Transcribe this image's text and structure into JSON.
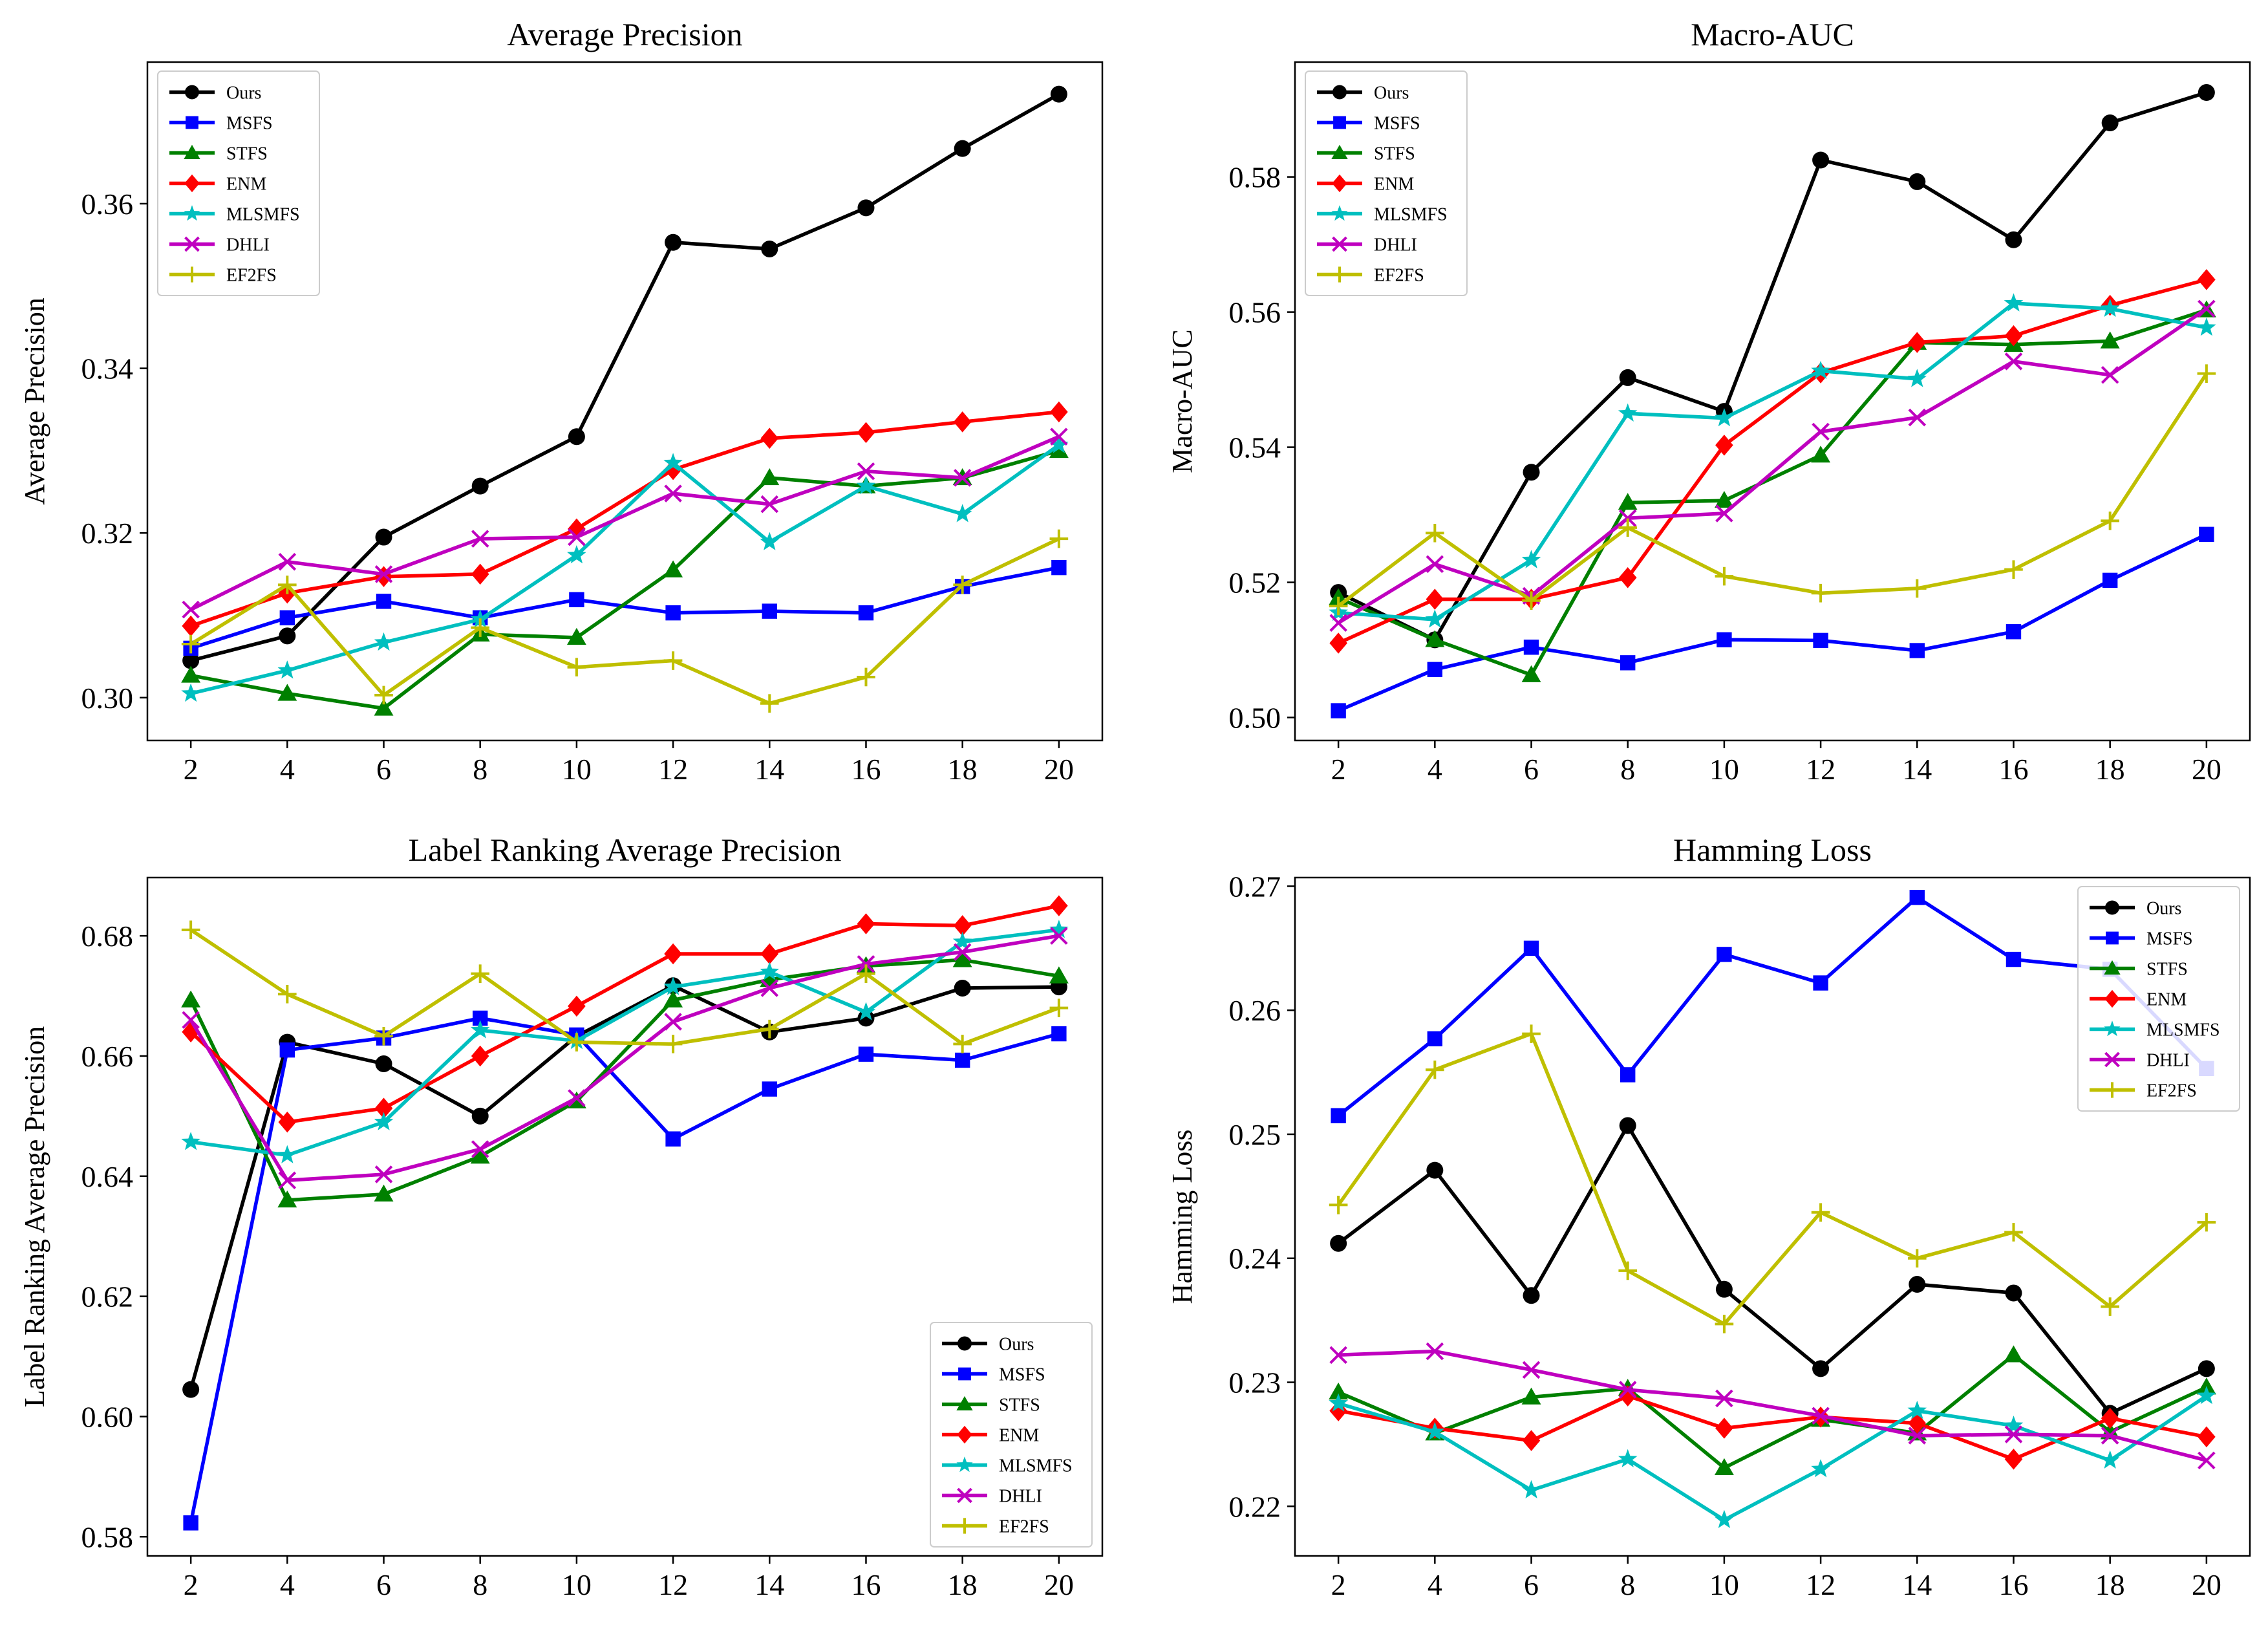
{
  "colors": {
    "Ours": "#000000",
    "MSFS": "#0000ff",
    "STFS": "#008000",
    "ENM": "#ff0000",
    "MLSMFS": "#00bfbf",
    "DHLI": "#bf00bf",
    "EF2FS": "#bfbf00"
  },
  "markers": {
    "Ours": "circle",
    "MSFS": "square",
    "STFS": "triangle",
    "ENM": "diamond",
    "MLSMFS": "star",
    "DHLI": "x",
    "EF2FS": "plus"
  },
  "chart_data": [
    {
      "type": "line",
      "title": "Average Precision",
      "xlabel": "",
      "ylabel": "Average Precision",
      "x": [
        2,
        4,
        6,
        8,
        10,
        12,
        14,
        16,
        18,
        20
      ],
      "xlim": [
        1.1,
        20.9
      ],
      "ylim": [
        0.2948,
        0.3772
      ],
      "yticks": [
        0.3,
        0.32,
        0.34,
        0.36
      ],
      "ytick_labels": [
        "0.30",
        "0.32",
        "0.34",
        "0.36"
      ],
      "legend": "top-left",
      "series": [
        {
          "name": "Ours",
          "values": [
            0.3045,
            0.3075,
            0.3195,
            0.3257,
            0.3317,
            0.3553,
            0.3545,
            0.3595,
            0.3667,
            0.3733
          ]
        },
        {
          "name": "MSFS",
          "values": [
            0.306,
            0.3097,
            0.3117,
            0.3097,
            0.3119,
            0.3103,
            0.3105,
            0.3103,
            0.3135,
            0.3158
          ]
        },
        {
          "name": "STFS",
          "values": [
            0.3027,
            0.3005,
            0.2987,
            0.3077,
            0.3073,
            0.3155,
            0.3267,
            0.3257,
            0.3267,
            0.33
          ]
        },
        {
          "name": "ENM",
          "values": [
            0.3087,
            0.3127,
            0.3147,
            0.315,
            0.3205,
            0.3277,
            0.3315,
            0.3322,
            0.3335,
            0.3347
          ]
        },
        {
          "name": "MLSMFS",
          "values": [
            0.3005,
            0.3033,
            0.3067,
            0.3095,
            0.3173,
            0.3285,
            0.3189,
            0.3257,
            0.3223,
            0.3307
          ]
        },
        {
          "name": "DHLI",
          "values": [
            0.3107,
            0.3165,
            0.315,
            0.3193,
            0.3195,
            0.3248,
            0.3235,
            0.3275,
            0.3267,
            0.3317
          ]
        },
        {
          "name": "EF2FS",
          "values": [
            0.3065,
            0.3137,
            0.3003,
            0.3085,
            0.3037,
            0.3045,
            0.2993,
            0.3025,
            0.3137,
            0.3193
          ]
        }
      ]
    },
    {
      "type": "line",
      "title": "Macro-AUC",
      "xlabel": "",
      "ylabel": "Macro-AUC",
      "x": [
        2,
        4,
        6,
        8,
        10,
        12,
        14,
        16,
        18,
        20
      ],
      "xlim": [
        1.1,
        20.9
      ],
      "ylim": [
        0.4966,
        0.597
      ],
      "yticks": [
        0.5,
        0.52,
        0.54,
        0.56,
        0.58
      ],
      "ytick_labels": [
        "0.50",
        "0.52",
        "0.54",
        "0.56",
        "0.58"
      ],
      "legend": "top-left",
      "series": [
        {
          "name": "Ours",
          "values": [
            0.5185,
            0.5115,
            0.5363,
            0.5503,
            0.5453,
            0.5825,
            0.5793,
            0.5707,
            0.588,
            0.5925
          ]
        },
        {
          "name": "MSFS",
          "values": [
            0.501,
            0.5071,
            0.5104,
            0.5081,
            0.5115,
            0.5114,
            0.5099,
            0.5127,
            0.5203,
            0.5271
          ]
        },
        {
          "name": "STFS",
          "values": [
            0.5177,
            0.5115,
            0.5063,
            0.5318,
            0.5321,
            0.5388,
            0.5555,
            0.5552,
            0.5557,
            0.5603
          ]
        },
        {
          "name": "ENM",
          "values": [
            0.511,
            0.5175,
            0.5175,
            0.5207,
            0.5403,
            0.551,
            0.5555,
            0.5565,
            0.561,
            0.5648
          ]
        },
        {
          "name": "MLSMFS",
          "values": [
            0.5155,
            0.5145,
            0.5233,
            0.545,
            0.5443,
            0.5513,
            0.5501,
            0.5613,
            0.5605,
            0.5577
          ]
        },
        {
          "name": "DHLI",
          "values": [
            0.514,
            0.5227,
            0.518,
            0.5295,
            0.5302,
            0.5423,
            0.5444,
            0.5527,
            0.5507,
            0.5605
          ]
        },
        {
          "name": "EF2FS",
          "values": [
            0.5165,
            0.5273,
            0.5173,
            0.5281,
            0.5209,
            0.5184,
            0.5191,
            0.5219,
            0.5291,
            0.5509
          ]
        }
      ]
    },
    {
      "type": "line",
      "title": "Label Ranking Average Precision",
      "xlabel": "",
      "ylabel": "Label Ranking Average Precision",
      "x": [
        2,
        4,
        6,
        8,
        10,
        12,
        14,
        16,
        18,
        20
      ],
      "xlim": [
        1.1,
        20.9
      ],
      "ylim": [
        0.5768,
        0.6897
      ],
      "yticks": [
        0.58,
        0.6,
        0.62,
        0.64,
        0.66,
        0.68
      ],
      "ytick_labels": [
        "0.58",
        "0.60",
        "0.62",
        "0.64",
        "0.66",
        "0.68"
      ],
      "legend": "bottom-right",
      "series": [
        {
          "name": "Ours",
          "values": [
            0.6045,
            0.6623,
            0.6587,
            0.65,
            0.6633,
            0.6717,
            0.664,
            0.6663,
            0.6713,
            0.6715
          ]
        },
        {
          "name": "MSFS",
          "values": [
            0.5823,
            0.661,
            0.663,
            0.6663,
            0.6635,
            0.6462,
            0.6545,
            0.6603,
            0.6593,
            0.6637
          ]
        },
        {
          "name": "STFS",
          "values": [
            0.6693,
            0.636,
            0.637,
            0.6433,
            0.6525,
            0.6693,
            0.6727,
            0.675,
            0.676,
            0.6733
          ]
        },
        {
          "name": "ENM",
          "values": [
            0.664,
            0.649,
            0.6513,
            0.66,
            0.6683,
            0.677,
            0.677,
            0.682,
            0.6817,
            0.685
          ]
        },
        {
          "name": "MLSMFS",
          "values": [
            0.6457,
            0.6435,
            0.649,
            0.6643,
            0.6625,
            0.6715,
            0.674,
            0.6673,
            0.679,
            0.681
          ]
        },
        {
          "name": "DHLI",
          "values": [
            0.666,
            0.6393,
            0.6403,
            0.6445,
            0.653,
            0.6657,
            0.6713,
            0.6753,
            0.6773,
            0.68
          ]
        },
        {
          "name": "EF2FS",
          "values": [
            0.681,
            0.6703,
            0.6633,
            0.6737,
            0.6623,
            0.662,
            0.6645,
            0.6737,
            0.662,
            0.668
          ]
        }
      ]
    },
    {
      "type": "line",
      "title": "Hamming Loss",
      "xlabel": "",
      "ylabel": "Hamming Loss",
      "x": [
        2,
        4,
        6,
        8,
        10,
        12,
        14,
        16,
        18,
        20
      ],
      "xlim": [
        1.1,
        20.9
      ],
      "ylim": [
        0.216,
        0.2707
      ],
      "yticks": [
        0.22,
        0.23,
        0.24,
        0.25,
        0.26,
        0.27
      ],
      "ytick_labels": [
        "0.22",
        "0.23",
        "0.24",
        "0.25",
        "0.26",
        "0.27"
      ],
      "legend": "top-right",
      "series": [
        {
          "name": "Ours",
          "values": [
            0.2412,
            0.2471,
            0.237,
            0.2507,
            0.2375,
            0.2311,
            0.2379,
            0.2372,
            0.2275,
            0.2311
          ]
        },
        {
          "name": "MSFS",
          "values": [
            0.2515,
            0.2577,
            0.265,
            0.2548,
            0.2645,
            0.2622,
            0.2691,
            0.2641,
            0.2633,
            0.2553
          ]
        },
        {
          "name": "STFS",
          "values": [
            0.2292,
            0.2259,
            0.2288,
            0.2295,
            0.2231,
            0.227,
            0.2259,
            0.2322,
            0.226,
            0.2296
          ]
        },
        {
          "name": "ENM",
          "values": [
            0.2277,
            0.2263,
            0.2253,
            0.2289,
            0.2263,
            0.2272,
            0.2267,
            0.2238,
            0.2271,
            0.2256
          ]
        },
        {
          "name": "MLSMFS",
          "values": [
            0.2283,
            0.226,
            0.2213,
            0.2238,
            0.2189,
            0.223,
            0.2277,
            0.2265,
            0.2237,
            0.2289
          ]
        },
        {
          "name": "DHLI",
          "values": [
            0.2322,
            0.2325,
            0.231,
            0.2294,
            0.2287,
            0.2273,
            0.2257,
            0.2258,
            0.2257,
            0.2237
          ]
        },
        {
          "name": "EF2FS",
          "values": [
            0.2443,
            0.2552,
            0.2581,
            0.239,
            0.2347,
            0.2437,
            0.24,
            0.2421,
            0.2361,
            0.2429
          ]
        }
      ]
    }
  ]
}
